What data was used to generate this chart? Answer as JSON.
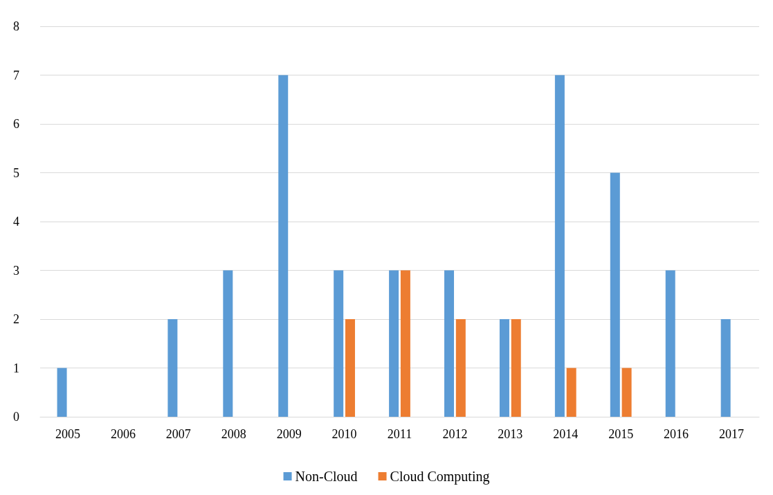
{
  "chart_data": {
    "type": "bar",
    "categories": [
      "2005",
      "2006",
      "2007",
      "2008",
      "2009",
      "2010",
      "2011",
      "2012",
      "2013",
      "2014",
      "2015",
      "2016",
      "2017"
    ],
    "series": [
      {
        "name": "Non-Cloud",
        "color": "#5b9bd5",
        "values": [
          1,
          0,
          2,
          3,
          7,
          3,
          3,
          3,
          2,
          7,
          5,
          3,
          2
        ]
      },
      {
        "name": "Cloud Computing",
        "color": "#ed7d31",
        "values": [
          0,
          0,
          0,
          0,
          0,
          2,
          3,
          2,
          2,
          1,
          1,
          0,
          0
        ]
      }
    ],
    "ylim": [
      0,
      8
    ],
    "yticks": [
      0,
      1,
      2,
      3,
      4,
      5,
      6,
      7,
      8
    ],
    "grid": "y",
    "legend": "bottom"
  }
}
